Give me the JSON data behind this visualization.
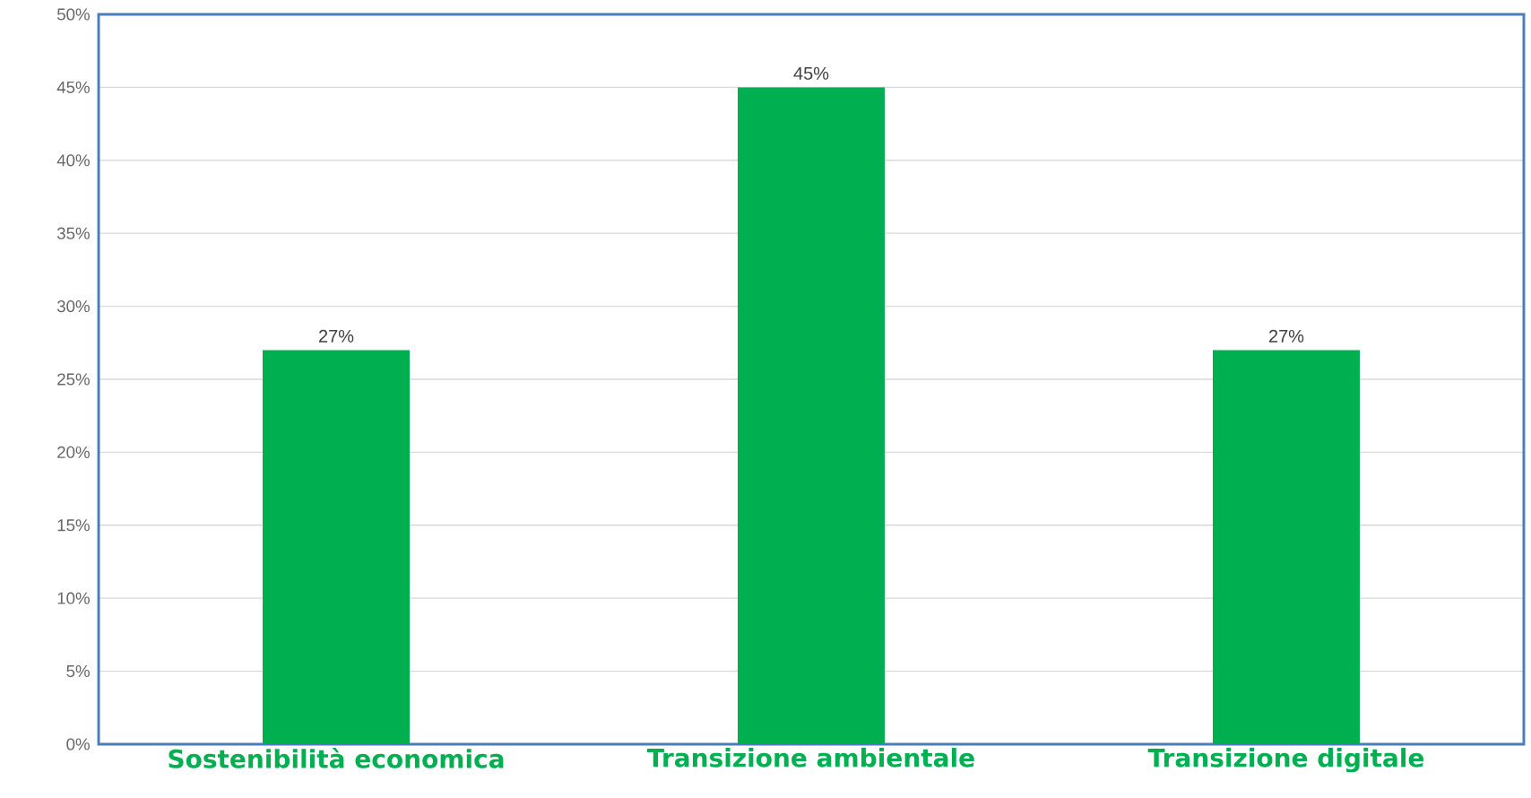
{
  "chart_data": {
    "type": "bar",
    "categories": [
      "Sostenibilità economica",
      "Transizione ambientale",
      "Transizione digitale"
    ],
    "values": [
      27,
      45,
      27
    ],
    "value_labels": [
      "27%",
      "45%",
      "27%"
    ],
    "color": "#00b050",
    "ylim": [
      0,
      50
    ],
    "yticks": [
      {
        "value": 0,
        "label": "0%"
      },
      {
        "value": 5,
        "label": "5%"
      },
      {
        "value": 10,
        "label": "10%"
      },
      {
        "value": 15,
        "label": "15%"
      },
      {
        "value": 20,
        "label": "20%"
      },
      {
        "value": 25,
        "label": "25%"
      },
      {
        "value": 30,
        "label": "30%"
      },
      {
        "value": 35,
        "label": "35%"
      },
      {
        "value": 40,
        "label": "40%"
      },
      {
        "value": 45,
        "label": "45%"
      },
      {
        "value": 50,
        "label": "50%"
      }
    ],
    "grid": "y"
  }
}
